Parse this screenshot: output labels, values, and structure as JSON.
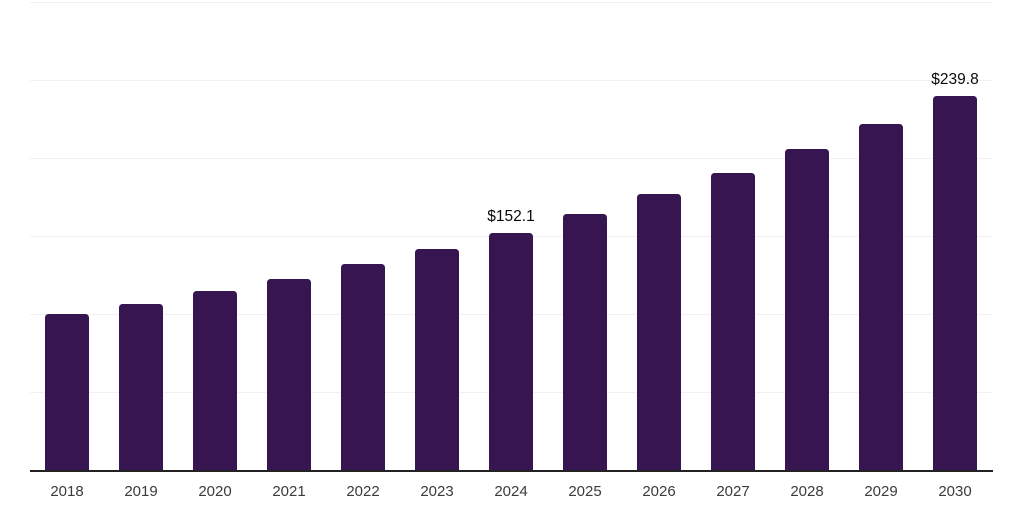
{
  "chart_data": {
    "type": "bar",
    "title": "",
    "xlabel": "",
    "ylabel": "",
    "categories": [
      "2018",
      "2019",
      "2020",
      "2021",
      "2022",
      "2023",
      "2024",
      "2025",
      "2026",
      "2027",
      "2028",
      "2029",
      "2030"
    ],
    "values": [
      99.8,
      106.3,
      114.8,
      122.3,
      131.9,
      141.5,
      152.1,
      163.9,
      176.7,
      190.7,
      205.8,
      222.1,
      239.8
    ],
    "annotations": [
      {
        "category": "2024",
        "text": "$152.1"
      },
      {
        "category": "2030",
        "text": "$239.8"
      }
    ],
    "ylim": [
      0,
      300
    ],
    "grid": true,
    "gridline_step": 50,
    "legend": "none",
    "colors": {
      "bar": "#361550",
      "gridline": "#f1f1f1",
      "axis_line": "#222222",
      "tick_label": "#3b3b3b",
      "value_label": "#0a0a0a",
      "background": "#ffffff"
    }
  }
}
